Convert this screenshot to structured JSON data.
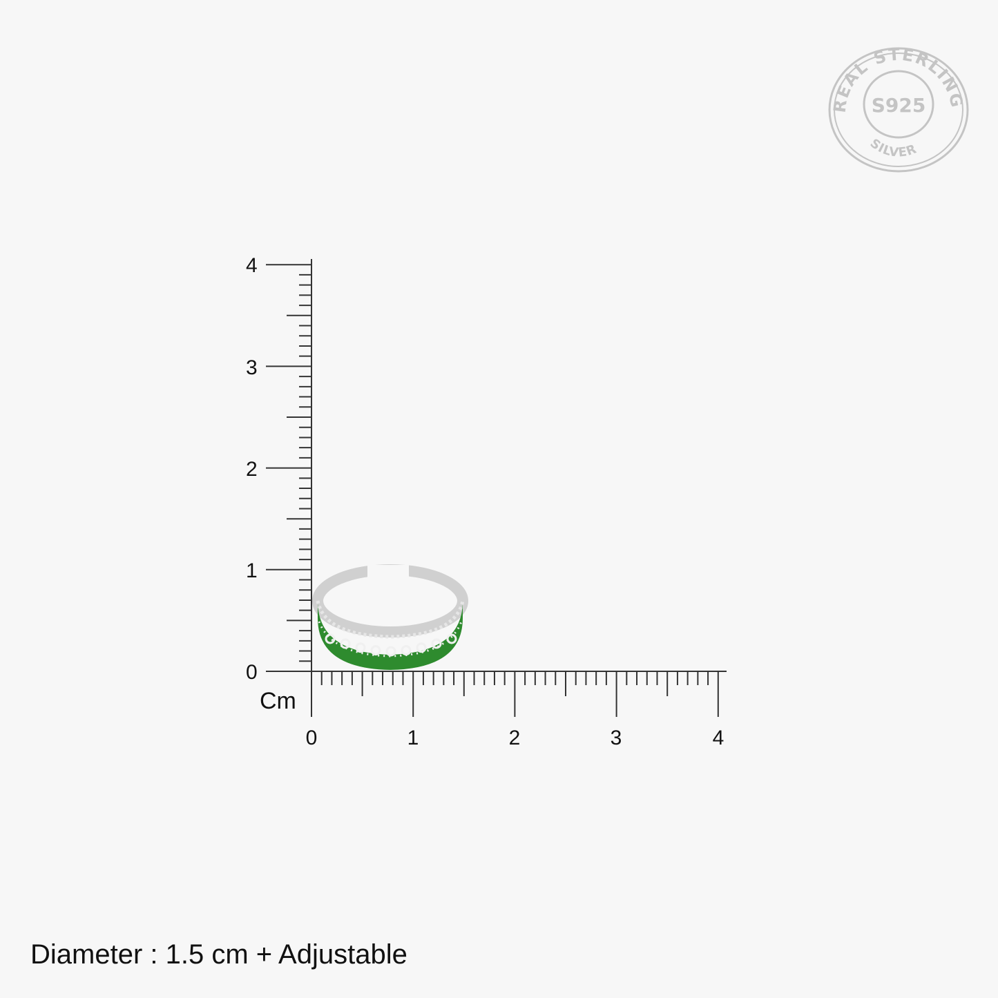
{
  "ruler": {
    "unit_label": "Cm",
    "x_ticks": [
      "0",
      "1",
      "2",
      "3",
      "4"
    ],
    "y_ticks": [
      "0",
      "1",
      "2",
      "3",
      "4"
    ],
    "range_cm": [
      0,
      4
    ],
    "minor_divisions_per_cm": 10
  },
  "product": {
    "description_caption": "Diameter : 1.5 cm + Adjustable",
    "diameter_cm": 1.5,
    "enamel_color": "#2e8b2e",
    "metal_color": "#d8d8d8"
  },
  "seal": {
    "top_text": "REAL STERLING",
    "center_text": "S925",
    "bottom_text": "SILVER",
    "color": "#c4c4c4"
  },
  "colors": {
    "background": "#f7f7f7",
    "ruler": "#333333"
  }
}
